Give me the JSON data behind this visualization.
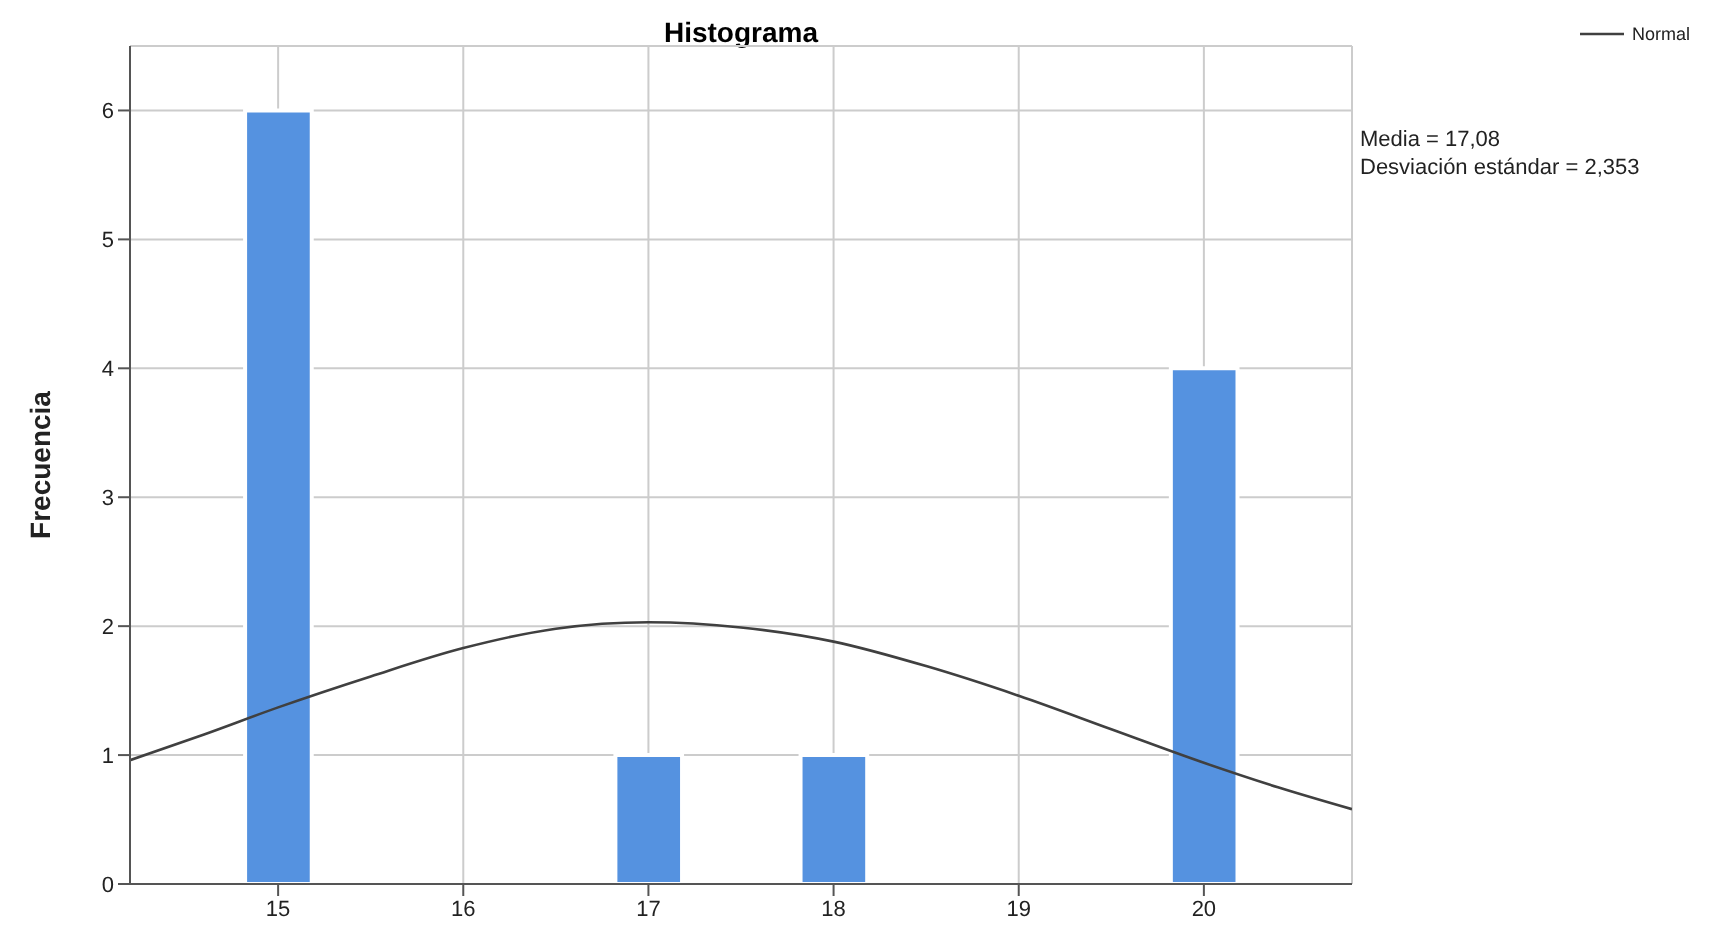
{
  "chart_data": {
    "type": "histogram",
    "title": "Histograma",
    "ylabel": "Frecuencia",
    "bins": [
      14.5,
      15.5,
      16.5,
      17.5,
      18.5,
      19.5,
      20.5
    ],
    "values": [
      6,
      0,
      1,
      1,
      0,
      4
    ],
    "color": "#5592e0",
    "xlim": [
      14.2,
      20.8
    ],
    "xticks": [
      15,
      16,
      17,
      18,
      19,
      20
    ],
    "ylim": [
      0,
      6.5
    ],
    "yticks": [
      0,
      1,
      2,
      3,
      4,
      5,
      6
    ],
    "grid": true,
    "legend": "top right",
    "annotations": [
      "Media = 17,08",
      "Desviación estándar = 2,353"
    ],
    "series": [
      {
        "name": "Normal",
        "type": "line",
        "color": "#404040",
        "x": [
          14.2,
          14.6,
          15,
          15.5,
          16,
          16.5,
          17,
          17.5,
          18,
          18.5,
          19,
          19.5,
          20,
          20.4,
          20.8
        ],
        "values": [
          0.96,
          1.16,
          1.37,
          1.61,
          1.83,
          1.98,
          2.03,
          1.99,
          1.88,
          1.69,
          1.46,
          1.2,
          0.94,
          0.75,
          0.58
        ]
      }
    ]
  }
}
